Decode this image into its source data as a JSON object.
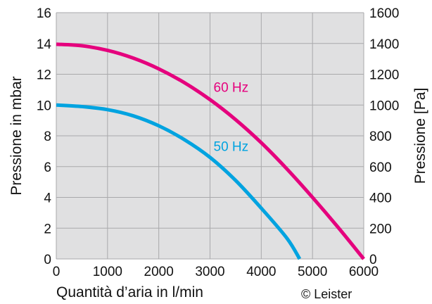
{
  "chart_data": {
    "type": "line",
    "xlabel": "Quantità d’aria in l/min",
    "ylabel": "Pressione in mbar",
    "y2label": "Pressione [Pa]",
    "xlim": [
      0,
      6000
    ],
    "ylim": [
      0,
      16
    ],
    "y2lim": [
      0,
      1600
    ],
    "xticks": [
      "0",
      "1000",
      "2000",
      "3000",
      "4000",
      "5000",
      "6000"
    ],
    "yticks": [
      "0",
      "2",
      "4",
      "6",
      "8",
      "10",
      "12",
      "14",
      "16"
    ],
    "y2ticks": [
      "0",
      "200",
      "400",
      "600",
      "800",
      "1000",
      "1200",
      "1400",
      "1600"
    ],
    "grid": true,
    "series": [
      {
        "name": "60 Hz",
        "color": "#e5007d",
        "x": [
          0,
          500,
          1000,
          1500,
          2000,
          2500,
          3000,
          3500,
          4000,
          4500,
          5000,
          5500,
          6000
        ],
        "y": [
          13.95,
          13.85,
          13.55,
          13.05,
          12.35,
          11.45,
          10.35,
          9.05,
          7.55,
          5.85,
          4.0,
          2.05,
          0
        ]
      },
      {
        "name": "50 Hz",
        "color": "#00a3e0",
        "x": [
          0,
          500,
          1000,
          1500,
          2000,
          2500,
          3000,
          3500,
          4000,
          4500,
          4750
        ],
        "y": [
          10.0,
          9.9,
          9.7,
          9.3,
          8.65,
          7.75,
          6.6,
          5.1,
          3.3,
          1.35,
          0
        ]
      }
    ],
    "credit": "© Leister"
  }
}
